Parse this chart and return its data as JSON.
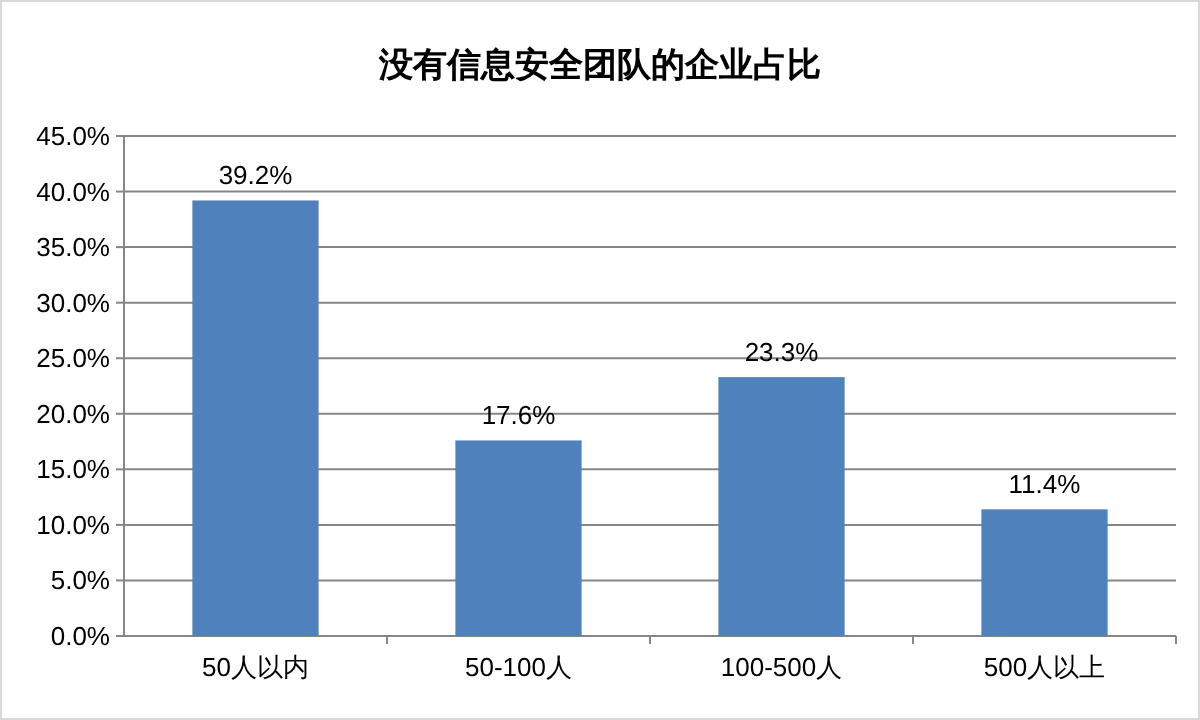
{
  "chart_data": {
    "type": "bar",
    "title": "没有信息安全团队的企业占比",
    "categories": [
      "50人以内",
      "50-100人",
      "100-500人",
      "500人以上"
    ],
    "values": [
      39.2,
      17.6,
      23.3,
      11.4
    ],
    "value_labels": [
      "39.2%",
      "17.6%",
      "23.3%",
      "11.4%"
    ],
    "color": "#4f81bd",
    "ylim": [
      0,
      45
    ],
    "yticks": [
      {
        "value": 0,
        "label": "0.0%"
      },
      {
        "value": 5,
        "label": "5.0%"
      },
      {
        "value": 10,
        "label": "10.0%"
      },
      {
        "value": 15,
        "label": "15.0%"
      },
      {
        "value": 20,
        "label": "20.0%"
      },
      {
        "value": 25,
        "label": "25.0%"
      },
      {
        "value": 30,
        "label": "30.0%"
      },
      {
        "value": 35,
        "label": "35.0%"
      },
      {
        "value": 40,
        "label": "40.0%"
      },
      {
        "value": 45,
        "label": "45.0%"
      }
    ],
    "grid": "y"
  }
}
